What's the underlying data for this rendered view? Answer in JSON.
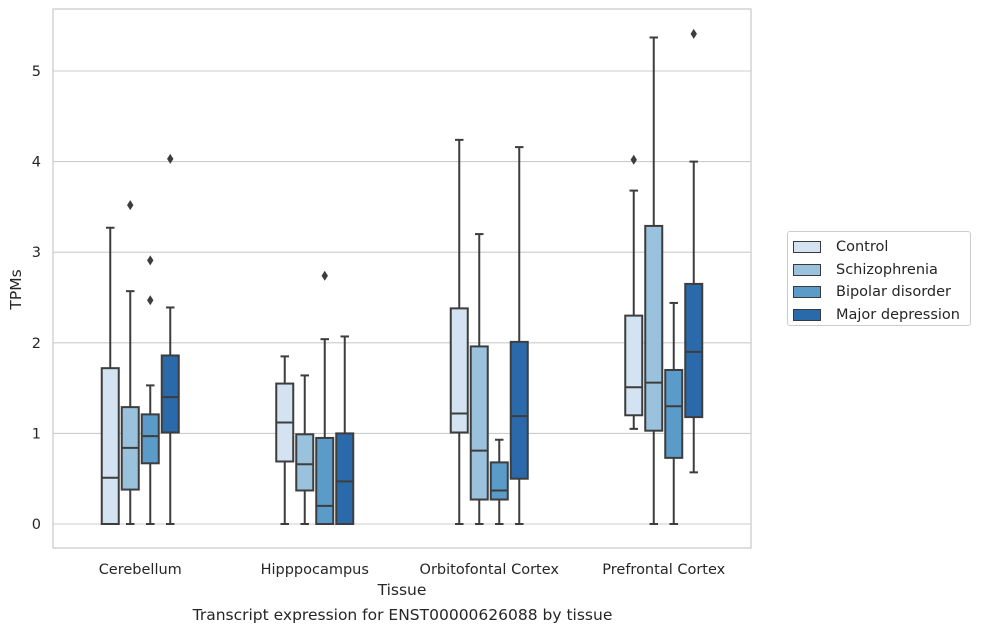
{
  "chart_data": {
    "type": "boxplot",
    "xlabel": "Tissue",
    "ylabel": "TPMs",
    "ylim": [
      -0.26,
      5.7
    ],
    "yticks": [
      0,
      1,
      2,
      3,
      4,
      5
    ],
    "grid": true,
    "legend_position": "right",
    "categories": [
      "Cerebellum",
      "Hipppocampus",
      "Orbitofontal Cortex",
      "Prefrontal Cortex"
    ],
    "series": [
      {
        "name": "Control",
        "color": "#d4e3f2",
        "boxes": [
          {
            "whislo": 0.0,
            "q1": 0.0,
            "med": 0.51,
            "q3": 1.72,
            "whishi": 3.27,
            "fliers": []
          },
          {
            "whislo": 0.0,
            "q1": 0.69,
            "med": 1.12,
            "q3": 1.55,
            "whishi": 1.85,
            "fliers": []
          },
          {
            "whislo": 0.0,
            "q1": 1.01,
            "med": 1.22,
            "q3": 2.38,
            "whishi": 4.24,
            "fliers": []
          },
          {
            "whislo": 1.05,
            "q1": 1.2,
            "med": 1.51,
            "q3": 2.3,
            "whishi": 3.68,
            "fliers": [
              4.02
            ]
          }
        ]
      },
      {
        "name": "Schizophrenia",
        "color": "#9ac2dd",
        "boxes": [
          {
            "whislo": 0.0,
            "q1": 0.38,
            "med": 0.84,
            "q3": 1.29,
            "whishi": 2.57,
            "fliers": [
              3.52
            ]
          },
          {
            "whislo": 0.0,
            "q1": 0.37,
            "med": 0.66,
            "q3": 0.99,
            "whishi": 1.64,
            "fliers": []
          },
          {
            "whislo": 0.0,
            "q1": 0.27,
            "med": 0.81,
            "q3": 1.96,
            "whishi": 3.2,
            "fliers": []
          },
          {
            "whislo": 0.0,
            "q1": 1.03,
            "med": 1.56,
            "q3": 3.29,
            "whishi": 5.37,
            "fliers": []
          }
        ]
      },
      {
        "name": "Bipolar disorder",
        "color": "#5b9bc9",
        "boxes": [
          {
            "whislo": 0.0,
            "q1": 0.67,
            "med": 0.97,
            "q3": 1.21,
            "whishi": 1.53,
            "fliers": [
              2.47,
              2.91
            ]
          },
          {
            "whislo": 0.0,
            "q1": 0.0,
            "med": 0.2,
            "q3": 0.95,
            "whishi": 2.04,
            "fliers": [
              2.74
            ]
          },
          {
            "whislo": 0.0,
            "q1": 0.27,
            "med": 0.37,
            "q3": 0.68,
            "whishi": 0.93,
            "fliers": []
          },
          {
            "whislo": 0.0,
            "q1": 0.73,
            "med": 1.3,
            "q3": 1.7,
            "whishi": 2.44,
            "fliers": []
          }
        ]
      },
      {
        "name": "Major depression",
        "color": "#2a6aaa",
        "boxes": [
          {
            "whislo": 0.0,
            "q1": 1.01,
            "med": 1.4,
            "q3": 1.86,
            "whishi": 2.39,
            "fliers": [
              4.03
            ]
          },
          {
            "whislo": 0.0,
            "q1": 0.0,
            "med": 0.47,
            "q3": 1.0,
            "whishi": 2.07,
            "fliers": []
          },
          {
            "whislo": 0.0,
            "q1": 0.5,
            "med": 1.19,
            "q3": 2.01,
            "whishi": 4.16,
            "fliers": []
          },
          {
            "whislo": 0.57,
            "q1": 1.18,
            "med": 1.9,
            "q3": 2.65,
            "whishi": 4.0,
            "fliers": [
              5.41
            ]
          }
        ]
      }
    ]
  },
  "caption": "Transcript expression for ENST00000626088 by tissue"
}
